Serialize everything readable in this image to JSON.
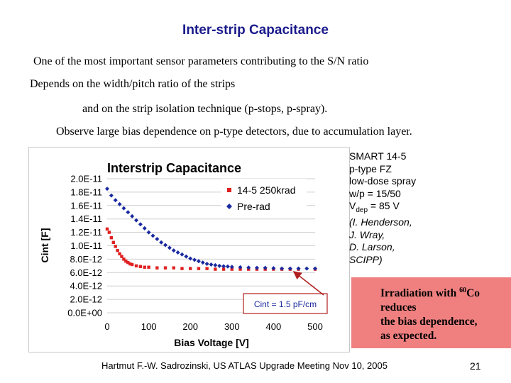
{
  "slide": {
    "title": "Inter-strip Capacitance",
    "lines": [
      "One of the most important sensor parameters contributing to the S/N ratio",
      "Depends on the width/pitch ratio of the strips",
      "and on the strip isolation technique (p-stops, p-spray).",
      "Observe large bias dependence on p-type detectors, due to accumulation layer."
    ],
    "info": {
      "line1": "SMART 14-5",
      "line2": "p-type FZ",
      "line3": "low-dose spray",
      "line4": "w/p = 15/50",
      "vdep_main": "V",
      "vdep_sub": "dep",
      "vdep_rest": " = 85 V",
      "credit": [
        "(I. Henderson,",
        "J. Wray,",
        "D. Larson,",
        "SCIPP)"
      ]
    },
    "irradiation": {
      "prefix": "Irradiation with ",
      "isotope_mass": "60",
      "isotope": "Co",
      "line2": "reduces",
      "line3": "the bias dependence,",
      "line4": "as expected."
    },
    "footer": "Hartmut F.-W. Sadrozinski, US ATLAS Upgrade Meeting Nov 10,  2005",
    "page_number": "21",
    "colors": {
      "title": "#1a1a8c",
      "irradiated": "#e02020",
      "prerad": "#1a2aa0",
      "callout_bg": "#f08080",
      "annotation_border": "#b02020"
    }
  },
  "chart_data": {
    "type": "scatter",
    "title": "Interstrip Capacitance",
    "xlabel": "Bias Voltage [V]",
    "ylabel": "Cint [F]",
    "xlim": [
      0,
      500
    ],
    "ylim": [
      0,
      2e-11
    ],
    "x_ticks": [
      0,
      100,
      200,
      300,
      400,
      500
    ],
    "x_tick_labels": [
      "0",
      "100",
      "200",
      "300",
      "400",
      "500"
    ],
    "y_ticks": [
      0,
      2e-12,
      4e-12,
      6e-12,
      8e-12,
      1e-11,
      1.2e-11,
      1.4e-11,
      1.6e-11,
      1.8e-11,
      2e-11
    ],
    "y_tick_labels": [
      "0.0E+00",
      "2.0E-12",
      "4.0E-12",
      "6.0E-12",
      "8.0E-12",
      "1.0E-11",
      "1.2E-11",
      "1.4E-11",
      "1.6E-11",
      "1.8E-11",
      "2.0E-11"
    ],
    "legend_position": "top-right",
    "annotation": "Cint = 1.5 pF/cm",
    "series": [
      {
        "name": "14-5 250krad",
        "color": "#e02020",
        "marker": "square",
        "points": [
          [
            0,
            1.25e-11
          ],
          [
            5,
            1.2e-11
          ],
          [
            10,
            1.12e-11
          ],
          [
            15,
            1.05e-11
          ],
          [
            20,
            9.9e-12
          ],
          [
            25,
            9.3e-12
          ],
          [
            30,
            8.8e-12
          ],
          [
            35,
            8.4e-12
          ],
          [
            40,
            8e-12
          ],
          [
            45,
            7.7e-12
          ],
          [
            50,
            7.5e-12
          ],
          [
            55,
            7.3e-12
          ],
          [
            60,
            7.2e-12
          ],
          [
            70,
            7e-12
          ],
          [
            80,
            6.9e-12
          ],
          [
            90,
            6.8e-12
          ],
          [
            100,
            6.8e-12
          ],
          [
            120,
            6.7e-12
          ],
          [
            140,
            6.7e-12
          ],
          [
            160,
            6.7e-12
          ],
          [
            180,
            6.6e-12
          ],
          [
            200,
            6.6e-12
          ],
          [
            220,
            6.6e-12
          ],
          [
            240,
            6.6e-12
          ],
          [
            260,
            6.5e-12
          ],
          [
            280,
            6.5e-12
          ],
          [
            300,
            6.5e-12
          ],
          [
            320,
            6.5e-12
          ],
          [
            340,
            6.5e-12
          ],
          [
            360,
            6.5e-12
          ],
          [
            380,
            6.5e-12
          ],
          [
            400,
            6.5e-12
          ],
          [
            420,
            6.5e-12
          ],
          [
            440,
            6.5e-12
          ],
          [
            460,
            6.5e-12
          ],
          [
            500,
            6.5e-12
          ]
        ]
      },
      {
        "name": "Pre-rad",
        "color": "#1a2aa0",
        "marker": "diamond",
        "points": [
          [
            0,
            1.85e-11
          ],
          [
            10,
            1.75e-11
          ],
          [
            20,
            1.68e-11
          ],
          [
            30,
            1.62e-11
          ],
          [
            40,
            1.56e-11
          ],
          [
            50,
            1.5e-11
          ],
          [
            60,
            1.44e-11
          ],
          [
            70,
            1.38e-11
          ],
          [
            80,
            1.32e-11
          ],
          [
            90,
            1.26e-11
          ],
          [
            100,
            1.2e-11
          ],
          [
            110,
            1.15e-11
          ],
          [
            120,
            1.1e-11
          ],
          [
            130,
            1.05e-11
          ],
          [
            140,
            1.01e-11
          ],
          [
            150,
            9.7e-12
          ],
          [
            160,
            9.3e-12
          ],
          [
            170,
            9e-12
          ],
          [
            180,
            8.7e-12
          ],
          [
            190,
            8.4e-12
          ],
          [
            200,
            8.1e-12
          ],
          [
            210,
            7.9e-12
          ],
          [
            220,
            7.7e-12
          ],
          [
            230,
            7.5e-12
          ],
          [
            240,
            7.3e-12
          ],
          [
            250,
            7.2e-12
          ],
          [
            260,
            7.1e-12
          ],
          [
            270,
            7e-12
          ],
          [
            280,
            6.95e-12
          ],
          [
            290,
            6.9e-12
          ],
          [
            300,
            6.85e-12
          ],
          [
            320,
            6.8e-12
          ],
          [
            340,
            6.75e-12
          ],
          [
            360,
            6.7e-12
          ],
          [
            380,
            6.7e-12
          ],
          [
            400,
            6.65e-12
          ],
          [
            420,
            6.6e-12
          ],
          [
            440,
            6.6e-12
          ],
          [
            460,
            6.6e-12
          ],
          [
            480,
            6.6e-12
          ],
          [
            500,
            6.6e-12
          ]
        ]
      }
    ]
  }
}
